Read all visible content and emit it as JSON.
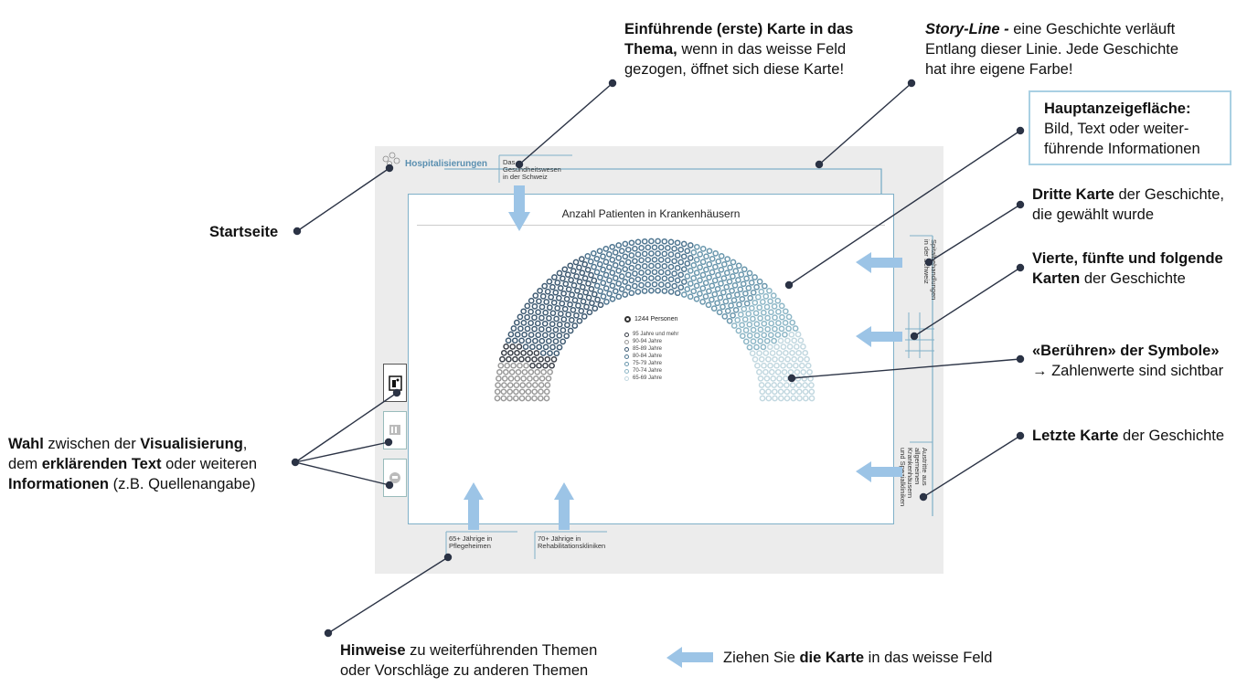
{
  "annotations": {
    "intro_card": {
      "b1": "Einführende (erste) Karte in das",
      "b2": "Thema,",
      "t2": " wenn in das weisse Feld",
      "t3": "gezogen, öffnet sich diese Karte!"
    },
    "storyline": {
      "i": "Story-Line -",
      "t1": " eine Geschichte verläuft",
      "t2": "Entlang dieser Linie. Jede Geschichte",
      "t3": "hat ihre eigene Farbe!"
    },
    "main_area": {
      "b": "Hauptanzeigefläche:",
      "t1": "Bild, Text oder weiter-",
      "t2": "führende Informationen"
    },
    "third_card": {
      "b": "Dritte Karte",
      "t1": " der Geschichte,",
      "t2": "die gewählt wurde"
    },
    "fourth_card": {
      "b1": "Vierte, fünfte und folgende",
      "b2": "Karten",
      "t2": " der Geschichte"
    },
    "touch": {
      "b": "«Berühren» der Symbole»",
      "t": "→ Zahlenwerte sind sichtbar"
    },
    "last_card": {
      "b": "Letzte Karte",
      "t": " der Geschichte"
    },
    "startpage": {
      "b": "Startseite"
    },
    "choice": {
      "b1": "Wahl",
      "t1a": " zwischen der ",
      "b1b": "Visualisierung",
      "t1b": ",",
      "t2a": "dem ",
      "b2": "erklärenden Text",
      "t2b": " oder weiteren",
      "b3": "Informationen",
      "t3": " (z.B. Quellenangabe)"
    },
    "hints": {
      "b": "Hinweise",
      "t1": " zu weiterführenden Themen",
      "t2": "oder Vorschläge zu anderen Themen"
    },
    "drag": {
      "t1": "Ziehen Sie ",
      "b": "die Karte",
      "t2": " in das weisse Feld"
    }
  },
  "mockup": {
    "start_title": "Hospitalisierungen",
    "card_title": "Anzahl Patienten in Krankenhäusern",
    "top_card_label": [
      "Das",
      "Gesundheitswesen",
      "in der Schweiz"
    ],
    "bottom_card_1": [
      "65+ Jährige in",
      "Pflegeheimen"
    ],
    "bottom_card_2": [
      "70+ Jährige in",
      "Rehabilitationskliniken"
    ],
    "right_card_3": [
      "Spitalbehandlungen",
      "in der Schweiz"
    ],
    "right_card_last": [
      "Austritte aus",
      "allgemeinen",
      "Krankenhäusern",
      "und Spezialkliniken"
    ]
  },
  "chart_data": {
    "type": "parliament",
    "title": "Anzahl Patienten in Krankenhäusern",
    "total_label": "1244 Personen",
    "categories": [
      "95 Jahre und mehr",
      "90-94 Jahre",
      "85-89 Jahre",
      "80-84 Jahre",
      "75-79 Jahre",
      "70-74 Jahre",
      "65-69 Jahre"
    ],
    "colors": [
      "#3a3f48",
      "#9a9a9a",
      "#3e5a72",
      "#4e7590",
      "#6a97ad",
      "#8cb6c6",
      "#c2d8e0"
    ]
  },
  "colors": {
    "accent": "#5a8fb0",
    "arrow": "#9cc4e6",
    "line": "#2b3345"
  }
}
